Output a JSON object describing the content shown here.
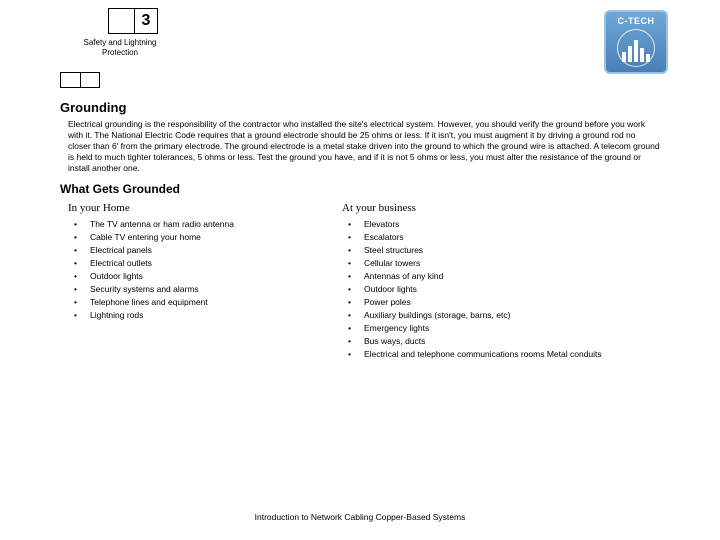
{
  "header": {
    "chapter_number": "3",
    "chapter_title": "Safety and Lightning Protection",
    "logo_text": "C-TECH"
  },
  "section": {
    "heading": "Grounding",
    "body": "Electrical grounding is the responsibility of the contractor who installed the site's electrical system. However, you should verify the ground before you work with it. The National Electric Code requires that a ground electrode should be 25 ohms or less. If it isn't, you must augment it by driving a ground rod no closer than 6' from the primary electrode. The ground electrode is a metal stake driven into the ground to which the ground wire is attached.\nA telecom ground is held to much tighter tolerances, 5 ohms or less. Test the ground you have, and if it is not 5 ohms or less, you must alter the resistance of the ground or install another one.",
    "subheading": "What Gets Grounded"
  },
  "columns": {
    "home": {
      "title": "In your Home",
      "items": [
        "The TV antenna or ham radio antenna",
        "Cable TV entering your home",
        "Electrical panels",
        "Electrical outlets",
        "Outdoor lights",
        "Security systems and alarms",
        "Telephone lines and equipment",
        "Lightning rods"
      ]
    },
    "business": {
      "title": "At your business",
      "items": [
        "Elevators",
        "Escalators",
        "Steel structures",
        "Cellular towers",
        "Antennas of any kind",
        "Outdoor lights",
        "Power poles",
        "Auxiliary buildings (storage, barns, etc)",
        "Emergency lights",
        "Bus ways, ducts",
        "Electrical and telephone communications rooms Metal conduits"
      ]
    }
  },
  "footer": "Introduction to Network Cabling Copper-Based Systems",
  "colors": {
    "logo_bg_top": "#6fa8d8",
    "logo_bg_bottom": "#4a7fb5",
    "logo_border": "#9cc3e6",
    "text": "#000000",
    "page_bg": "#ffffff"
  },
  "logo_bars_heights": [
    10,
    16,
    22,
    14,
    8
  ]
}
